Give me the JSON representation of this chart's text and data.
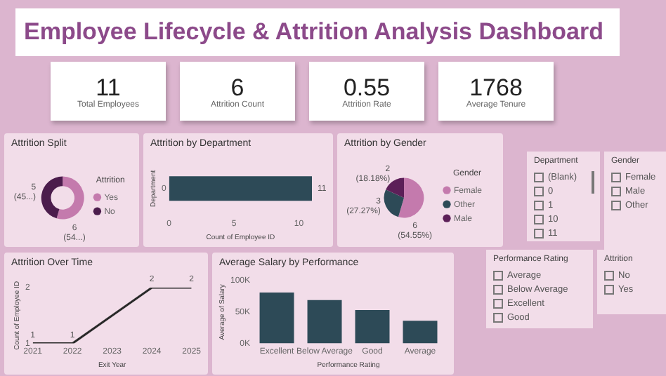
{
  "chart_data": [
    {
      "type": "other",
      "title": "Employee Lifecycle & Attrition Analysis Dashboard",
      "categories": [
        "Total Employees",
        "Attrition Count",
        "Attrition Rate",
        "Average Tenure"
      ],
      "values": [
        11,
        6,
        0.55,
        1768
      ],
      "data_labels": true
    },
    {
      "type": "donut",
      "title": "Attrition Split",
      "categories": [
        "Yes",
        "No"
      ],
      "values": [
        6,
        5
      ],
      "colors": [
        "#c47aad",
        "#4b1c4c"
      ],
      "value_labels": [
        "6 (54...)",
        "5 (45...)"
      ],
      "legend": "right",
      "legend_title": "Attrition"
    },
    {
      "type": "bar",
      "title": "Attrition by Department",
      "orientation": "horizontal",
      "categories": [
        "0"
      ],
      "values": [
        11
      ],
      "color": "#2d4a57",
      "xlim": [
        0,
        11
      ],
      "xticks": [
        0,
        5,
        10
      ],
      "xlabel": "Count of Employee ID",
      "ylabel": "Department",
      "data_labels": true
    },
    {
      "type": "pie",
      "title": "Attrition by Gender",
      "categories": [
        "Female",
        "Other",
        "Male"
      ],
      "values": [
        6,
        3,
        2
      ],
      "colors": [
        "#c47aad",
        "#2d4a57",
        "#5c1f58"
      ],
      "value_labels": [
        "6 (54.55%)",
        "3 (27.27%)",
        "2 (18.18%)"
      ],
      "legend": "right",
      "legend_title": "Gender"
    },
    {
      "type": "other",
      "title": "Department",
      "categories": [
        "(Blank)",
        "0",
        "1",
        "10",
        "11"
      ]
    },
    {
      "type": "other",
      "title": "Gender",
      "categories": [
        "Female",
        "Male",
        "Other"
      ]
    },
    {
      "type": "line",
      "title": "Attrition Over Time",
      "x": [
        2021,
        2022,
        2024,
        2025
      ],
      "values": [
        1,
        1,
        2,
        2
      ],
      "color": "#2a2a2a",
      "xlim": [
        2021,
        2025
      ],
      "xticks": [
        2021,
        2022,
        2023,
        2024,
        2025
      ],
      "ylim": [
        1,
        2
      ],
      "yticks": [
        1,
        2
      ],
      "xlabel": "Exit Year",
      "ylabel": "Count of Employee ID",
      "data_labels": true
    },
    {
      "type": "bar",
      "title": "Average Salary by Performance",
      "categories": [
        "Excellent",
        "Below Average",
        "Good",
        "Average"
      ],
      "values": [
        81000,
        69000,
        53000,
        36000
      ],
      "color": "#2d4a57",
      "ylim": [
        0,
        100000
      ],
      "yticks": [
        {
          "value": 0,
          "label": "0K"
        },
        {
          "value": 50000,
          "label": "50K"
        },
        {
          "value": 100000,
          "label": "100K"
        }
      ],
      "xlabel": "Performance Rating",
      "ylabel": "Average of Salary"
    },
    {
      "type": "other",
      "title": "Performance Rating",
      "categories": [
        "Average",
        "Below Average",
        "Excellent",
        "Good"
      ]
    },
    {
      "type": "other",
      "title": "Attrition",
      "categories": [
        "No",
        "Yes"
      ]
    }
  ]
}
